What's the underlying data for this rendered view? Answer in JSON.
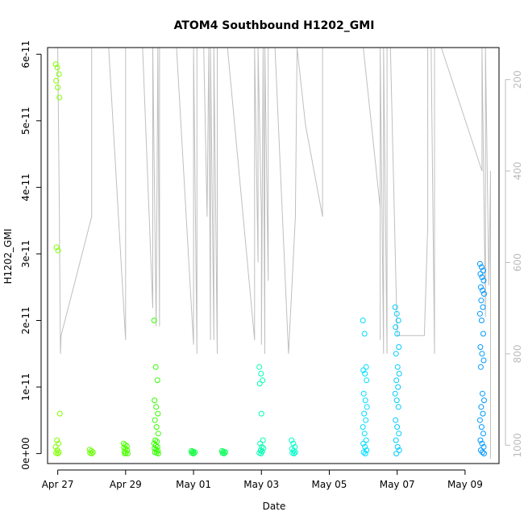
{
  "chart_data": {
    "type": "scatter",
    "title": "ATOM4 Southbound H1202_GMI",
    "xlabel": "Date",
    "ylabel": "H1202_GMI",
    "x_ticks": [
      "Apr 27",
      "Apr 29",
      "May 01",
      "May 03",
      "May 05",
      "May 07",
      "May 09"
    ],
    "xlim": [
      -0.3,
      13.0
    ],
    "ylim": [
      -1.5e-12,
      6.1e-11
    ],
    "y_ticks": [
      {
        "value": 0,
        "label": "0e+00"
      },
      {
        "value": 1e-11,
        "label": "1e-11"
      },
      {
        "value": 2e-11,
        "label": "2e-11"
      },
      {
        "value": 3e-11,
        "label": "3e-11"
      },
      {
        "value": 4e-11,
        "label": "4e-11"
      },
      {
        "value": 5e-11,
        "label": "5e-11"
      },
      {
        "value": 6e-11,
        "label": "6e-11"
      }
    ],
    "right_axis": {
      "ylim_top_to_bottom": [
        130,
        1040
      ],
      "ticks": [
        {
          "value": 200,
          "label": "200"
        },
        {
          "value": 400,
          "label": "400"
        },
        {
          "value": 600,
          "label": "600"
        },
        {
          "value": 800,
          "label": "800"
        },
        {
          "value": 1000,
          "label": "1000"
        }
      ],
      "color": "#bbbbbb"
    },
    "altitude_trace": [
      [
        0.0,
        130
      ],
      [
        0.05,
        500
      ],
      [
        0.05,
        520
      ],
      [
        0.08,
        800
      ],
      [
        0.1,
        760
      ],
      [
        1.0,
        500
      ],
      [
        1.0,
        130
      ],
      [
        1.5,
        130
      ],
      [
        2.0,
        770
      ],
      [
        2.0,
        130
      ],
      [
        2.5,
        130
      ],
      [
        2.8,
        700
      ],
      [
        2.8,
        130
      ],
      [
        2.9,
        740
      ],
      [
        2.95,
        130
      ],
      [
        3.0,
        740
      ],
      [
        3.0,
        130
      ],
      [
        3.5,
        130
      ],
      [
        4.0,
        780
      ],
      [
        4.0,
        130
      ],
      [
        4.1,
        800
      ],
      [
        4.1,
        130
      ],
      [
        4.3,
        130
      ],
      [
        4.4,
        500
      ],
      [
        4.45,
        130
      ],
      [
        4.5,
        770
      ],
      [
        4.5,
        130
      ],
      [
        4.6,
        770
      ],
      [
        4.6,
        130
      ],
      [
        4.7,
        800
      ],
      [
        4.7,
        130
      ],
      [
        5.0,
        130
      ],
      [
        5.8,
        770
      ],
      [
        5.8,
        130
      ],
      [
        5.9,
        600
      ],
      [
        5.9,
        130
      ],
      [
        6.0,
        500
      ],
      [
        6.0,
        780
      ],
      [
        6.05,
        130
      ],
      [
        6.1,
        800
      ],
      [
        6.1,
        130
      ],
      [
        6.2,
        640
      ],
      [
        6.2,
        130
      ],
      [
        6.4,
        130
      ],
      [
        6.8,
        800
      ],
      [
        7.0,
        500
      ],
      [
        7.05,
        130
      ],
      [
        7.3,
        300
      ],
      [
        7.8,
        500
      ],
      [
        7.8,
        130
      ],
      [
        9.0,
        130
      ],
      [
        9.5,
        480
      ],
      [
        9.5,
        770
      ],
      [
        9.5,
        130
      ],
      [
        9.6,
        800
      ],
      [
        9.6,
        130
      ],
      [
        9.7,
        800
      ],
      [
        9.7,
        130
      ],
      [
        9.8,
        130
      ],
      [
        10.0,
        760
      ],
      [
        10.8,
        760
      ],
      [
        10.9,
        520
      ],
      [
        10.9,
        130
      ],
      [
        11.0,
        130
      ],
      [
        11.1,
        800
      ],
      [
        11.1,
        130
      ],
      [
        11.3,
        130
      ],
      [
        12.5,
        400
      ],
      [
        12.5,
        130
      ],
      [
        12.6,
        720
      ],
      [
        12.6,
        130
      ],
      [
        12.7,
        650
      ],
      [
        12.75,
        400
      ],
      [
        12.75,
        1030
      ]
    ],
    "clusters": [
      {
        "x": 0.0,
        "vals": [
          5.85e-11,
          5.8e-11,
          5.7e-11,
          5.6e-11,
          5.5e-11,
          5.35e-11,
          3.1e-11,
          3.05e-11,
          6e-12,
          2e-12,
          1.5e-12,
          1e-12,
          5e-13,
          2e-13,
          1e-13,
          0
        ]
      },
      {
        "x": 1.0,
        "vals": [
          6e-13,
          4e-13,
          2e-13,
          1e-13,
          0
        ]
      },
      {
        "x": 2.0,
        "vals": [
          1.5e-12,
          1.3e-12,
          1.1e-12,
          9e-13,
          7e-13,
          5e-13,
          3e-13,
          1e-13,
          0,
          0
        ]
      },
      {
        "x": 2.9,
        "vals": [
          2e-11,
          1.3e-11,
          1.1e-11,
          8e-12,
          7e-12,
          6e-12,
          5e-12,
          4e-12,
          3e-12,
          2e-12,
          1.8e-12,
          1.5e-12,
          1.2e-12,
          1e-12,
          8e-13,
          6e-13,
          4e-13,
          2e-13,
          1e-13,
          0
        ]
      },
      {
        "x": 4.0,
        "vals": [
          4e-13,
          3e-13,
          2e-13,
          1e-13,
          0
        ]
      },
      {
        "x": 4.9,
        "vals": [
          4e-13,
          3e-13,
          2e-13,
          1e-13,
          0
        ]
      },
      {
        "x": 6.0,
        "vals": [
          1.3e-11,
          1.2e-11,
          1.1e-11,
          1.05e-11,
          6e-12,
          2e-12,
          1.5e-12,
          1e-12,
          8e-13,
          5e-13,
          3e-13,
          1e-13,
          0
        ]
      },
      {
        "x": 6.95,
        "vals": [
          2e-12,
          1.5e-12,
          1e-12,
          7e-13,
          4e-13,
          2e-13,
          1e-13,
          0
        ]
      },
      {
        "x": 9.05,
        "vals": [
          2e-11,
          1.8e-11,
          1.3e-11,
          1.25e-11,
          1.2e-11,
          1.1e-11,
          9e-12,
          8e-12,
          7e-12,
          6e-12,
          5e-12,
          4e-12,
          3e-12,
          2e-12,
          1.5e-12,
          1e-12,
          5e-13,
          2e-13,
          0
        ]
      },
      {
        "x": 10.0,
        "vals": [
          2.2e-11,
          2.1e-11,
          2e-11,
          1.9e-11,
          1.8e-11,
          1.6e-11,
          1.5e-11,
          1.3e-11,
          1.2e-11,
          1.1e-11,
          1e-11,
          9e-12,
          8e-12,
          7e-12,
          5e-12,
          4e-12,
          3e-12,
          2e-12,
          1e-12,
          5e-13,
          0
        ]
      },
      {
        "x": 12.5,
        "vals": [
          2.85e-11,
          2.8e-11,
          2.75e-11,
          2.7e-11,
          2.65e-11,
          2.6e-11,
          2.5e-11,
          2.45e-11,
          2.4e-11,
          2.3e-11,
          2.2e-11,
          2.1e-11,
          2e-11,
          1.8e-11,
          1.6e-11,
          1.5e-11,
          1.4e-11,
          1.3e-11,
          9e-12,
          8e-12,
          7e-12,
          6e-12,
          5e-12,
          4e-12,
          3e-12,
          2e-12,
          1.5e-12,
          1e-12,
          5e-13,
          2e-13,
          0
        ]
      }
    ],
    "point_colors": [
      "#80ff00",
      "#66ff00",
      "#4dff00",
      "#33ff00",
      "#00ff33",
      "#00ff55",
      "#00ffb3",
      "#00ffcc",
      "#00ddff",
      "#00ccff",
      "#0099ff"
    ],
    "trace_color": "#bfbfbf",
    "grid": false,
    "legend": "none"
  }
}
